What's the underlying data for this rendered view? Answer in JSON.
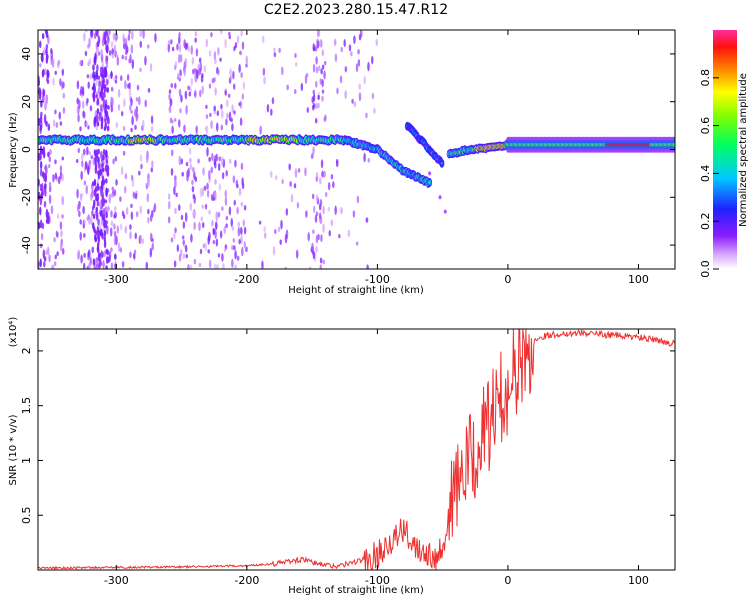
{
  "figure": {
    "title": "C2E2.2023.280.15.47.R12"
  },
  "chart_data": [
    {
      "type": "heatmap",
      "name": "spectrogram",
      "xlabel": "Height of straight line (km)",
      "ylabel": "Frequency (Hz)",
      "xlim": [
        -360,
        128
      ],
      "ylim": [
        -50,
        50
      ],
      "x_ticks": [
        -300,
        -200,
        -100,
        0,
        100
      ],
      "y_ticks": [
        -40,
        -20,
        0,
        20,
        40
      ],
      "grid": false,
      "colorbar": {
        "label": "Normalized spectral amplitude",
        "range": [
          0,
          1
        ],
        "ticks": [
          0.0,
          0.2,
          0.4,
          0.6,
          0.8
        ],
        "colormap": "rainbow (white → purple → blue → cyan → green → yellow → orange → red → magenta)"
      },
      "features": {
        "main_band_frequency_hz": 4,
        "main_band_x_range": [
          -360,
          -125
        ],
        "descending_branch": {
          "x": [
            -125,
            -100,
            -80,
            -60
          ],
          "y": [
            4,
            0,
            -9,
            -14
          ]
        },
        "upper_branch": {
          "x": [
            -77,
            -65,
            -50
          ],
          "y": [
            10,
            3,
            -6
          ]
        },
        "recovery": {
          "x": [
            -45,
            -30,
            -10,
            0
          ],
          "y": [
            -2,
            0,
            1,
            2
          ]
        },
        "right_band_frequency_hz": 2,
        "right_band_x_range": [
          0,
          128
        ]
      }
    },
    {
      "type": "line",
      "name": "snr",
      "xlabel": "Height of straight line (km)",
      "ylabel": "SNR (10 * v/v)",
      "yscale_label": "(x10⁴)",
      "xlim": [
        -360,
        128
      ],
      "ylim": [
        0,
        2.2
      ],
      "x_ticks": [
        -300,
        -200,
        -100,
        0,
        100
      ],
      "y_ticks": [
        0.5,
        1.0,
        1.5,
        2.0
      ],
      "color": "#ee3030",
      "grid": false,
      "series": [
        {
          "x": [
            -360,
            -250,
            -200,
            -180,
            -165,
            -155,
            -150,
            -140,
            -130,
            -110,
            -100,
            -90,
            -80,
            -70,
            -55,
            -50,
            -45,
            -40,
            -35,
            -30,
            -25,
            -20,
            -15,
            -10,
            -5,
            0,
            5,
            10,
            15,
            20,
            25,
            30,
            40,
            50,
            60,
            70,
            80,
            90,
            100,
            110,
            120,
            128
          ],
          "y": [
            0.02,
            0.03,
            0.04,
            0.06,
            0.09,
            0.1,
            0.07,
            0.05,
            0.04,
            0.1,
            0.17,
            0.3,
            0.38,
            0.25,
            0.15,
            0.25,
            0.55,
            0.85,
            0.95,
            1.05,
            1.15,
            1.3,
            1.42,
            1.55,
            1.65,
            1.78,
            1.9,
            1.98,
            2.05,
            2.1,
            2.13,
            2.15,
            2.16,
            2.17,
            2.17,
            2.16,
            2.15,
            2.14,
            2.13,
            2.11,
            2.09,
            2.07
          ]
        }
      ]
    }
  ]
}
